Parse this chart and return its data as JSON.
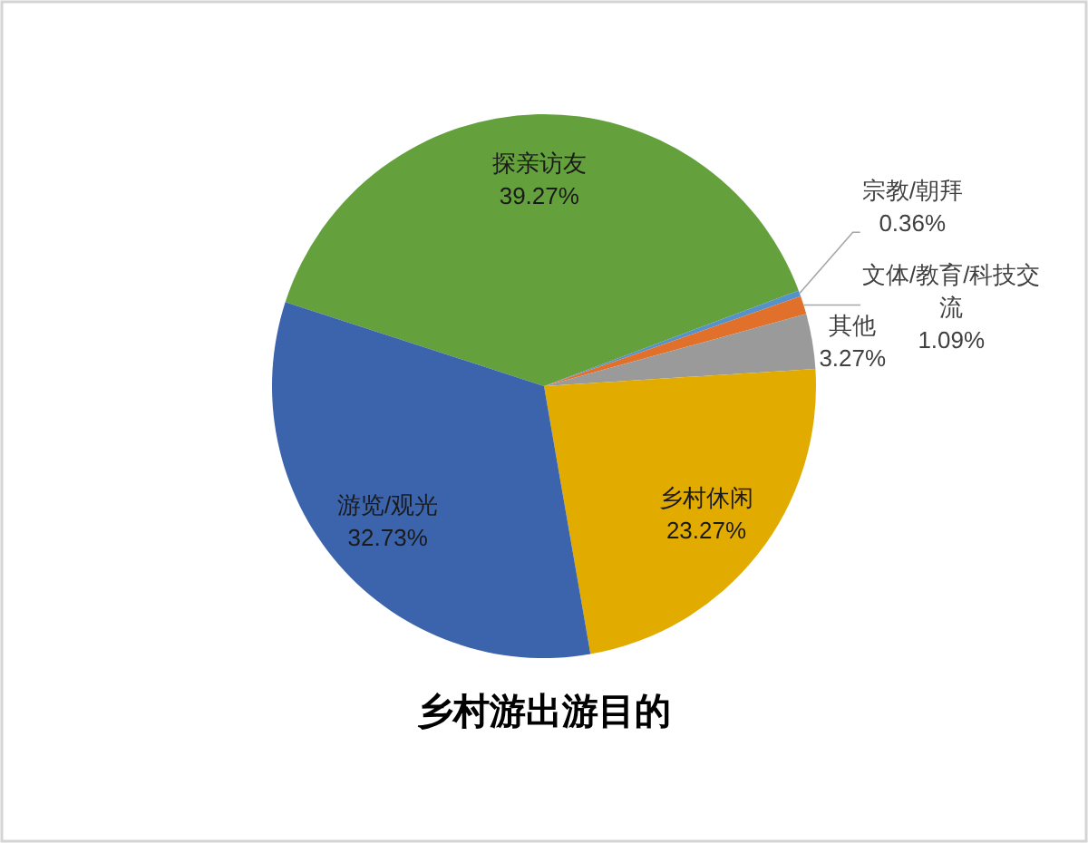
{
  "chart_data": {
    "type": "pie",
    "title": "乡村游出游目的",
    "categories": [
      "探亲访友",
      "宗教/朝拜",
      "文体/教育/科技交流",
      "其他",
      "乡村休闲",
      "游览/观光"
    ],
    "values": [
      39.27,
      0.36,
      1.09,
      3.27,
      23.27,
      32.73
    ],
    "value_labels": [
      "39.27%",
      "0.36%",
      "1.09%",
      "3.27%",
      "23.27%",
      "32.73%"
    ],
    "colors": [
      "#64a03c",
      "#5591cb",
      "#e1702a",
      "#9a9a9a",
      "#e2ab00",
      "#3b64ad"
    ]
  }
}
